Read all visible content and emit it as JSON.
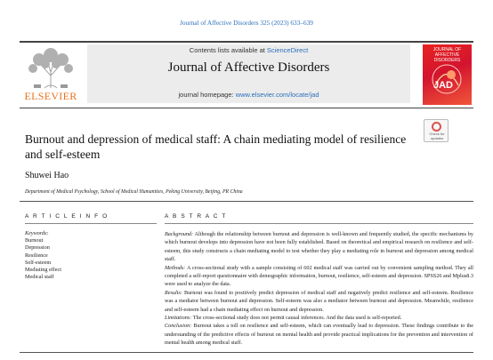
{
  "citation": "Journal of Affective Disorders 325 (2023) 633–639",
  "header": {
    "contents_prefix": "Contents lists available at ",
    "contents_link": "ScienceDirect",
    "journal_title": "Journal of Affective Disorders",
    "homepage_prefix": "journal homepage: ",
    "homepage_link": "www.elsevier.com/locate/jad",
    "publisher": "ELSEVIER",
    "cover_title": "JOURNAL OF AFFECTIVE DISORDERS",
    "cover_abbrev": "JAD"
  },
  "check_updates": "Check for updates",
  "article": {
    "title": "Burnout and depression of medical staff: A chain mediating model of resilience and self-esteem",
    "author": "Shuwei Hao",
    "affiliation": "Department of Medical Psychology, School of Medical Humanities, Peking University, Beijing, PR China"
  },
  "article_info": {
    "heading": "A R T I C L E   I N F O",
    "keywords_label": "Keywords:",
    "keywords": [
      "Burnout",
      "Depression",
      "Resilience",
      "Self-esteem",
      "Mediating effect",
      "Medical staff"
    ]
  },
  "abstract": {
    "heading": "A B S T R A C T",
    "sections": [
      {
        "label": "Background:",
        "text": " Although the relationship between burnout and depression is well-known and frequently studied, the specific mechanisms by which burnout develops into depression have not been fully established. Based on theoretical and empirical research on resilience and self-esteem, this study constructs a chain mediating model to test whether they play a mediating role in burnout and depression among medical staff."
      },
      {
        "label": "Methods:",
        "text": " A cross-sectional study with a sample consisting of 602 medical staff was carried out by convenient sampling method. They all completed a self-report questionnaire with demographic information, burnout, resilience, self-esteem and depression. SPSS26 and Mplus8.3 were used to analyze the data."
      },
      {
        "label": "Results:",
        "text": " Burnout was found to positively predict depression of medical staff and negatively predict resilience and self-esteem. Resilience was a mediator between burnout and depression. Self-esteem was also a mediator between burnout and depression. Meanwhile, resilience and self-esteem had a chain mediating effect on burnout and depression."
      },
      {
        "label": "Limitations:",
        "text": " The cross-sectional study does not permit causal inferences. And the data used is self-reported."
      },
      {
        "label": "Conclusion:",
        "text": " Burnout takes a toll on resilience and self-esteem, which can eventually lead to depression. These findings contribute to the understanding of the predictive effects of burnout on mental health and provide practical implications for the prevention and intervention of mental health among medical staff."
      }
    ]
  }
}
